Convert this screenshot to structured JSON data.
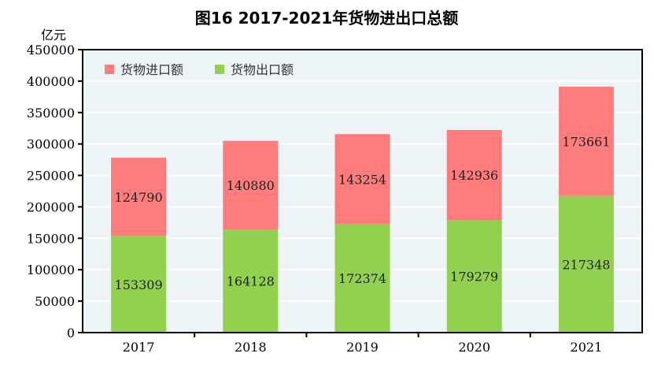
{
  "chart_data": {
    "type": "bar",
    "stacked": true,
    "title": "图16   2017-2021年货物进出口总额",
    "ylabel": "亿元",
    "xlabel": "",
    "categories": [
      "2017",
      "2018",
      "2019",
      "2020",
      "2021"
    ],
    "series": [
      {
        "name": "货物出口额",
        "values": [
          153309,
          164128,
          172374,
          179279,
          217348
        ],
        "color": "#92d050"
      },
      {
        "name": "货物进口额",
        "values": [
          124790,
          140880,
          143254,
          142936,
          173661
        ],
        "color": "#ff7c7c"
      }
    ],
    "ylim": [
      0,
      450000
    ],
    "yticks": [
      0,
      50000,
      100000,
      150000,
      200000,
      250000,
      300000,
      350000,
      400000,
      450000
    ],
    "grid": true,
    "legend": "top-left",
    "background": "#ecf4f7"
  }
}
